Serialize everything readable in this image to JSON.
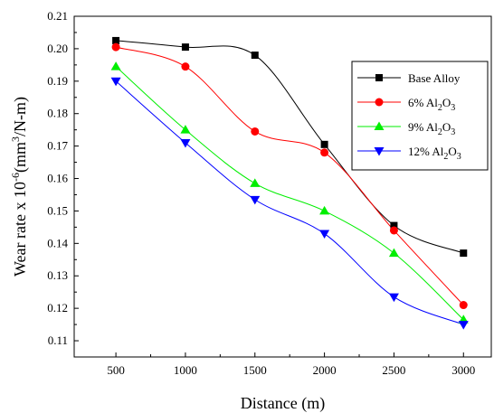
{
  "chart_data": {
    "type": "line",
    "x": [
      500,
      1000,
      1500,
      2000,
      2500,
      3000
    ],
    "xlabel": "Distance (m)",
    "ylabel_parts": [
      "Wear rate x 10",
      "-6",
      "(mm",
      "3",
      "/N-m)"
    ],
    "xlim": [
      200,
      3200
    ],
    "ylim": [
      0.105,
      0.21
    ],
    "xticks": [
      500,
      1000,
      1500,
      2000,
      2500,
      3000
    ],
    "yticks": [
      0.11,
      0.12,
      0.13,
      0.14,
      0.15,
      0.16,
      0.17,
      0.18,
      0.19,
      0.2,
      0.21
    ],
    "ytick_labels": [
      "0.11",
      "0.12",
      "0.13",
      "0.14",
      "0.15",
      "0.16",
      "0.17",
      "0.18",
      "0.19",
      "0.20",
      "0.21"
    ],
    "grid": false,
    "legend_position": "top-right",
    "series": [
      {
        "name": "Base Alloy",
        "label_parts": [
          "Base Alloy"
        ],
        "marker": "square",
        "color": "#000000",
        "values": [
          0.2025,
          0.2005,
          0.198,
          0.1705,
          0.1455,
          0.137
        ]
      },
      {
        "name": "6% Al2O3",
        "label_parts": [
          "6% Al",
          "2",
          "O",
          "3"
        ],
        "marker": "circle",
        "color": "#ff0000",
        "values": [
          0.2005,
          0.1945,
          0.1745,
          0.168,
          0.144,
          0.121
        ]
      },
      {
        "name": "9% Al2O3",
        "label_parts": [
          "9% Al",
          "2",
          "O",
          "3"
        ],
        "marker": "triangle-up",
        "color": "#00ee00",
        "values": [
          0.1945,
          0.175,
          0.1585,
          0.15,
          0.137,
          0.1165
        ]
      },
      {
        "name": "12% Al2O3",
        "label_parts": [
          "12% Al",
          "2",
          "O",
          "3"
        ],
        "marker": "triangle-down",
        "color": "#0000ff",
        "values": [
          0.19,
          0.171,
          0.1535,
          0.143,
          0.1235,
          0.115
        ]
      }
    ]
  }
}
